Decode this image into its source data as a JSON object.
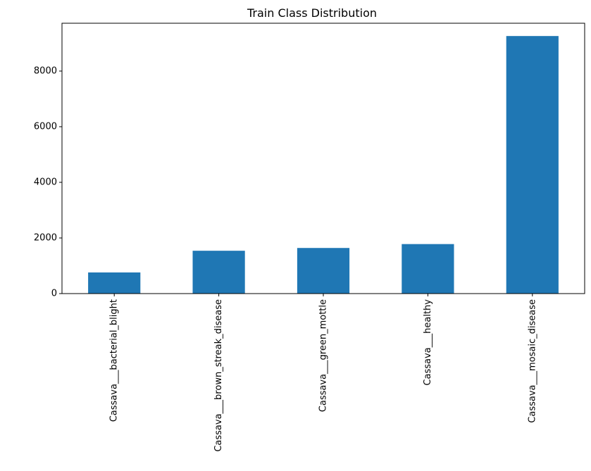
{
  "chart_data": {
    "type": "bar",
    "title": "Train Class Distribution",
    "xlabel": "",
    "ylabel": "",
    "categories": [
      "Cassava___bacterial_blight",
      "Cassava___brown_streak_disease",
      "Cassava___green_mottle",
      "Cassava___healthy",
      "Cassava___mosaic_disease"
    ],
    "values": [
      760,
      1540,
      1640,
      1780,
      9260
    ],
    "ylim": [
      0,
      9720
    ],
    "yticks": [
      0,
      2000,
      4000,
      6000,
      8000
    ],
    "yticklabels": [
      "0",
      "2000",
      "4000",
      "6000",
      "8000"
    ],
    "bar_color": "#1f77b4",
    "grid": false,
    "legend": "none"
  }
}
